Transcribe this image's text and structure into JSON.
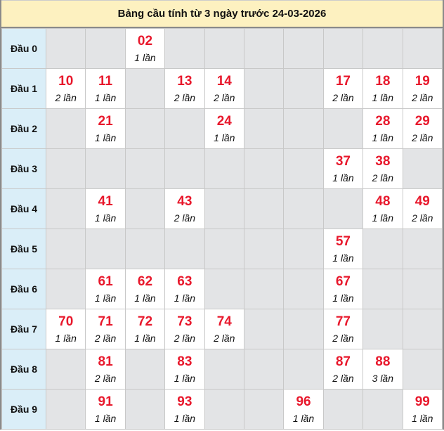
{
  "title": "Bảng cầu tính từ 3 ngày trước 24-03-2026",
  "count_suffix": "lần",
  "colors": {
    "number": "#e8182c",
    "header_bg": "#fdf1c0",
    "row_label_bg": "#daeef8",
    "empty_bg": "#e3e4e6"
  },
  "rows": [
    {
      "label": "Đầu 0",
      "cells": [
        null,
        null,
        {
          "n": "02",
          "c": "1 lần"
        },
        null,
        null,
        null,
        null,
        null,
        null,
        null
      ]
    },
    {
      "label": "Đầu 1",
      "cells": [
        {
          "n": "10",
          "c": "2 lần"
        },
        {
          "n": "11",
          "c": "1 lần"
        },
        null,
        {
          "n": "13",
          "c": "2 lần"
        },
        {
          "n": "14",
          "c": "2 lần"
        },
        null,
        null,
        {
          "n": "17",
          "c": "2 lần"
        },
        {
          "n": "18",
          "c": "1 lần"
        },
        {
          "n": "19",
          "c": "2 lần"
        }
      ]
    },
    {
      "label": "Đầu 2",
      "cells": [
        null,
        {
          "n": "21",
          "c": "1 lần"
        },
        null,
        null,
        {
          "n": "24",
          "c": "1 lần"
        },
        null,
        null,
        null,
        {
          "n": "28",
          "c": "1 lần"
        },
        {
          "n": "29",
          "c": "2 lần"
        }
      ]
    },
    {
      "label": "Đầu 3",
      "cells": [
        null,
        null,
        null,
        null,
        null,
        null,
        null,
        {
          "n": "37",
          "c": "1 lần"
        },
        {
          "n": "38",
          "c": "2 lần"
        },
        null
      ]
    },
    {
      "label": "Đầu 4",
      "cells": [
        null,
        {
          "n": "41",
          "c": "1 lần"
        },
        null,
        {
          "n": "43",
          "c": "2 lần"
        },
        null,
        null,
        null,
        null,
        {
          "n": "48",
          "c": "1 lần"
        },
        {
          "n": "49",
          "c": "2 lần"
        }
      ]
    },
    {
      "label": "Đầu 5",
      "cells": [
        null,
        null,
        null,
        null,
        null,
        null,
        null,
        {
          "n": "57",
          "c": "1 lần"
        },
        null,
        null
      ]
    },
    {
      "label": "Đầu 6",
      "cells": [
        null,
        {
          "n": "61",
          "c": "1 lần"
        },
        {
          "n": "62",
          "c": "1 lần"
        },
        {
          "n": "63",
          "c": "1 lần"
        },
        null,
        null,
        null,
        {
          "n": "67",
          "c": "1 lần"
        },
        null,
        null
      ]
    },
    {
      "label": "Đầu 7",
      "cells": [
        {
          "n": "70",
          "c": "1 lần"
        },
        {
          "n": "71",
          "c": "2 lần"
        },
        {
          "n": "72",
          "c": "1 lần"
        },
        {
          "n": "73",
          "c": "2 lần"
        },
        {
          "n": "74",
          "c": "2 lần"
        },
        null,
        null,
        {
          "n": "77",
          "c": "2 lần"
        },
        null,
        null
      ]
    },
    {
      "label": "Đầu 8",
      "cells": [
        null,
        {
          "n": "81",
          "c": "2 lần"
        },
        null,
        {
          "n": "83",
          "c": "1 lần"
        },
        null,
        null,
        null,
        {
          "n": "87",
          "c": "2 lần"
        },
        {
          "n": "88",
          "c": "3 lần"
        },
        null
      ]
    },
    {
      "label": "Đầu 9",
      "cells": [
        null,
        {
          "n": "91",
          "c": "1 lần"
        },
        null,
        {
          "n": "93",
          "c": "1 lần"
        },
        null,
        null,
        {
          "n": "96",
          "c": "1 lần"
        },
        null,
        null,
        {
          "n": "99",
          "c": "1 lần"
        }
      ]
    }
  ]
}
